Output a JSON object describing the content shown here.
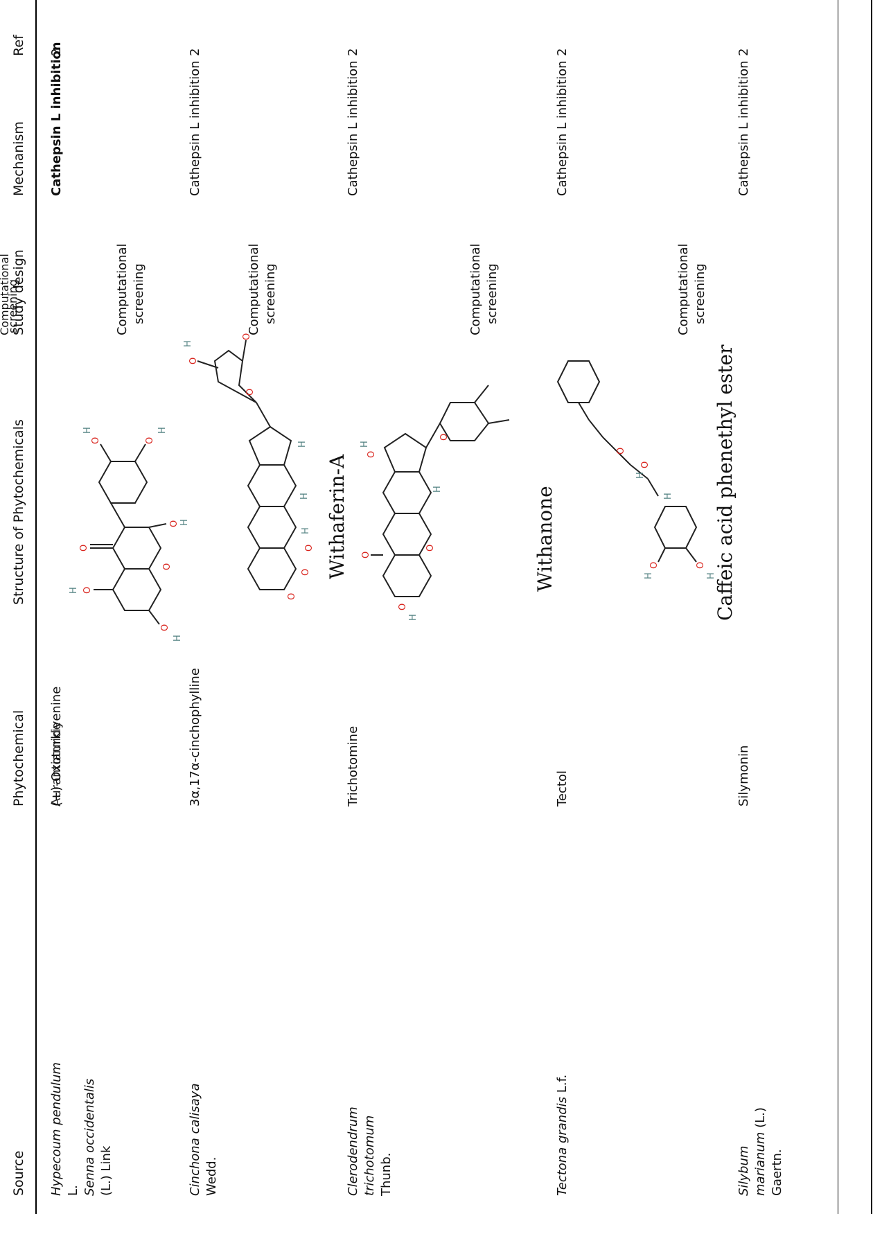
{
  "table": {
    "headers": {
      "source": "Source",
      "phytochemical": "Phytochemical",
      "structure": "Structure of Phytochemicals",
      "study_design": "Study design",
      "mechanism": "Mechanism",
      "ref": "Ref"
    },
    "rows": [
      {
        "source_italic": "Hypecoum pendulum",
        "source_rest": "L.",
        "source2_italic": "Senna occidentalis",
        "source2_rest": "(L.) Link",
        "phytochemical": "(+)-Oxoturkiyenine",
        "phytochemical_overlap": "Aurantiamide",
        "study_design": "Computational screening",
        "mechanism": "Cathepsin L inhibition",
        "ref": "2"
      },
      {
        "source_italic": "Cinchona calisaya",
        "source_rest": "Wedd.",
        "phytochemical": "3α,17α-cinchophylline",
        "study_design": "Computational screening",
        "mechanism": "Cathepsin L inhibition",
        "ref": "2"
      },
      {
        "source_italic": "Clerodendrum trichotomum",
        "source_rest": "Thunb.",
        "phytochemical": "Trichotomine",
        "structure_label": "Withaferin-A",
        "study_design": "Computational screening",
        "mechanism": "Cathepsin L inhibition",
        "ref": "2"
      },
      {
        "source_italic": "Tectona grandis",
        "source_rest": "L.f.",
        "phytochemical": "Tectol",
        "structure_label": "Withanone",
        "study_design": "Computational screening",
        "mechanism": "Cathepsin L inhibition",
        "ref": "2"
      },
      {
        "source_italic": "Silybum marianum",
        "source_rest": "(L.) Gaertn.",
        "phytochemical": "Silymonin",
        "structure_label": "Caffeic acid phenethyl ester",
        "study_design": "Computational screening",
        "mechanism": "Cathepsin L inhibition",
        "ref": "2"
      }
    ],
    "header_overlap": {
      "line1": "Computational",
      "line2": "screening"
    }
  },
  "colors": {
    "oxygen": "#d9231c",
    "hydrogen": "#4f7f7f",
    "rule": "#000000"
  }
}
